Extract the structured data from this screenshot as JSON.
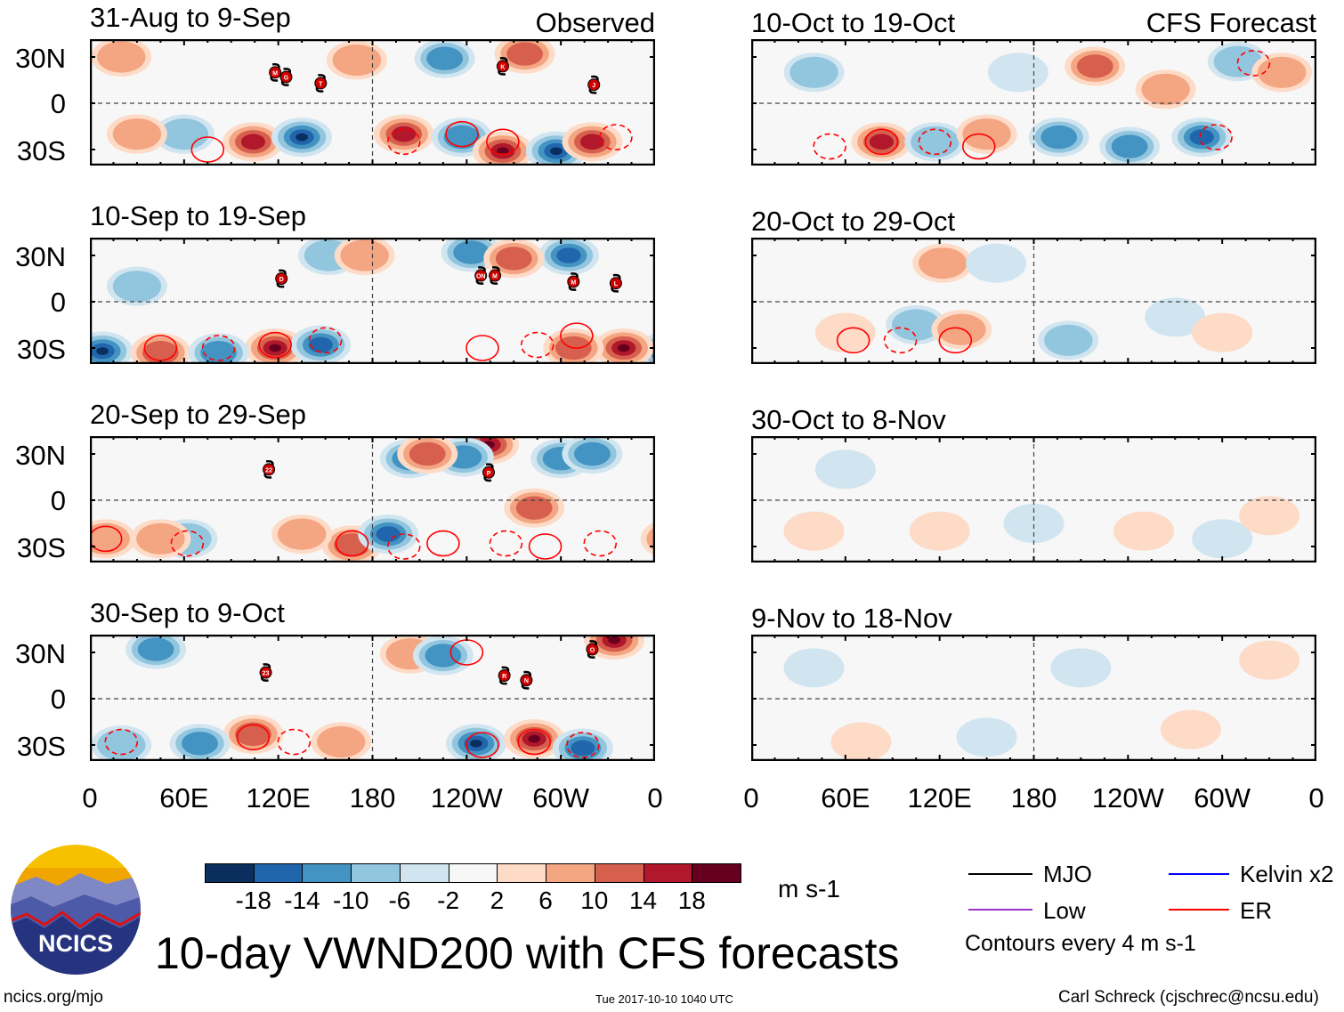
{
  "header": {
    "observed_label": "Observed",
    "forecast_label": "CFS Forecast"
  },
  "axes": {
    "y_ticks": [
      "30N",
      "0",
      "30S"
    ],
    "x_ticks": [
      "0",
      "60E",
      "120E",
      "180",
      "120W",
      "60W",
      "0"
    ]
  },
  "colorbar": {
    "colors": [
      "#0a2f5e",
      "#2166ac",
      "#4393c3",
      "#92c5de",
      "#d1e5f0",
      "#f7f7f7",
      "#fddbc7",
      "#f4a582",
      "#d6604d",
      "#b2182b",
      "#67001f"
    ],
    "labels": [
      "-18",
      "-14",
      "-10",
      "-6",
      "-2",
      "2",
      "6",
      "10",
      "14",
      "18"
    ],
    "units": "m s-1"
  },
  "legend": {
    "items": [
      {
        "label": "MJO",
        "color": "#000000"
      },
      {
        "label": "Low",
        "color": "#9933cc"
      },
      {
        "label": "Kelvin x2",
        "color": "#0000ff"
      },
      {
        "label": "ER",
        "color": "#ff0000"
      }
    ],
    "contour_note": "Contours every 4 m s-1"
  },
  "title": "10-day VWND200 with CFS forecasts",
  "logo_text": "NCICS",
  "footer": {
    "left": "ncics.org/mjo",
    "center": "Tue 2017-10-10 1040 UTC",
    "right": "Carl Schreck (cjschrec@ncsu.edu)"
  },
  "chart_data": {
    "type": "heatmap",
    "variable": "200-hPa meridional wind anomaly (m s-1)",
    "lon_range": [
      0,
      360
    ],
    "panels": [
      {
        "title": "31-Aug to 9-Sep",
        "kind": "observed",
        "anomalies": [
          [
            104,
            -25,
            14
          ],
          [
            135,
            -22,
            -18
          ],
          [
            200,
            -20,
            14
          ],
          [
            237,
            -22,
            -10
          ],
          [
            263,
            -31,
            18
          ],
          [
            297,
            -31,
            -18
          ],
          [
            320,
            -25,
            14
          ],
          [
            226,
            29,
            -10
          ],
          [
            277,
            32,
            10
          ],
          [
            20,
            30,
            6
          ],
          [
            60,
            -20,
            -6
          ],
          [
            170,
            28,
            6
          ],
          [
            30,
            -20,
            6
          ]
        ],
        "er_contours": [
          [
            237,
            -20,
            1
          ],
          [
            263,
            -25,
            1
          ],
          [
            335,
            -22,
            -1
          ],
          [
            75,
            -30,
            1
          ],
          [
            200,
            -25,
            -1
          ]
        ],
        "storms": [
          {
            "label": "M",
            "lon": 118,
            "lat": 20
          },
          {
            "label": "G",
            "lon": 125,
            "lat": 17
          },
          {
            "label": "T",
            "lon": 147,
            "lat": 13
          },
          {
            "label": "K",
            "lon": 263,
            "lat": 24
          },
          {
            "label": "J",
            "lon": 321,
            "lat": 12
          }
        ]
      },
      {
        "title": "10-Sep to 19-Sep",
        "kind": "observed",
        "anomalies": [
          [
            118,
            -30,
            18
          ],
          [
            147,
            -28,
            -14
          ],
          [
            8,
            -32,
            -18
          ],
          [
            45,
            -33,
            10
          ],
          [
            82,
            -33,
            -10
          ],
          [
            340,
            -30,
            18
          ],
          [
            305,
            30,
            -14
          ],
          [
            152,
            30,
            -6
          ],
          [
            175,
            30,
            6
          ],
          [
            243,
            32,
            -10
          ],
          [
            308,
            -30,
            10
          ],
          [
            30,
            10,
            -6
          ],
          [
            270,
            28,
            10
          ]
        ],
        "er_contours": [
          [
            118,
            -28,
            1
          ],
          [
            82,
            -30,
            -1
          ],
          [
            150,
            -25,
            -1
          ],
          [
            45,
            -30,
            1
          ],
          [
            250,
            -30,
            1
          ],
          [
            285,
            -28,
            -1
          ],
          [
            310,
            -22,
            1
          ]
        ],
        "storms": [
          {
            "label": "D",
            "lon": 122,
            "lat": 15
          },
          {
            "label": "ON",
            "lon": 249,
            "lat": 17
          },
          {
            "label": "M",
            "lon": 258,
            "lat": 17
          },
          {
            "label": "M",
            "lon": 308,
            "lat": 13
          },
          {
            "label": "L",
            "lon": 335,
            "lat": 12
          }
        ]
      },
      {
        "title": "20-Sep to 29-Sep",
        "kind": "observed",
        "anomalies": [
          [
            254,
            36,
            18
          ],
          [
            204,
            27,
            -10
          ],
          [
            238,
            28,
            -10
          ],
          [
            300,
            27,
            -10
          ],
          [
            167,
            -29,
            10
          ],
          [
            190,
            -22,
            -14
          ],
          [
            135,
            -22,
            6
          ],
          [
            62,
            -25,
            -6
          ],
          [
            45,
            -25,
            6
          ],
          [
            283,
            -5,
            10
          ],
          [
            320,
            30,
            -10
          ],
          [
            215,
            30,
            10
          ],
          [
            10,
            -25,
            6
          ]
        ],
        "er_contours": [
          [
            10,
            -25,
            1
          ],
          [
            62,
            -28,
            -1
          ],
          [
            167,
            -28,
            1
          ],
          [
            200,
            -30,
            -1
          ],
          [
            225,
            -28,
            1
          ],
          [
            265,
            -28,
            -1
          ],
          [
            290,
            -30,
            1
          ],
          [
            325,
            -28,
            -1
          ]
        ],
        "storms": [
          {
            "label": "22",
            "lon": 114,
            "lat": 20
          },
          {
            "label": "P",
            "lon": 254,
            "lat": 18
          }
        ]
      },
      {
        "title": "30-Sep to 9-Oct",
        "kind": "observed",
        "anomalies": [
          [
            104,
            -23,
            10
          ],
          [
            70,
            -29,
            -10
          ],
          [
            246,
            -29,
            -18
          ],
          [
            283,
            -26,
            18
          ],
          [
            314,
            -32,
            -14
          ],
          [
            334,
            38,
            18
          ],
          [
            42,
            32,
            -10
          ],
          [
            204,
            29,
            6
          ],
          [
            160,
            -28,
            6
          ],
          [
            225,
            28,
            -10
          ],
          [
            20,
            -30,
            -6
          ]
        ],
        "er_contours": [
          [
            104,
            -25,
            1
          ],
          [
            130,
            -28,
            -1
          ],
          [
            250,
            -30,
            1
          ],
          [
            283,
            -28,
            1
          ],
          [
            314,
            -30,
            -1
          ],
          [
            20,
            -28,
            -1
          ],
          [
            240,
            30,
            1
          ]
        ],
        "storms": [
          {
            "label": "23",
            "lon": 112,
            "lat": 17
          },
          {
            "label": "R",
            "lon": 264,
            "lat": 15
          },
          {
            "label": "N",
            "lon": 278,
            "lat": 12
          },
          {
            "label": "O",
            "lon": 320,
            "lat": 32
          }
        ]
      },
      {
        "title": "10-Oct to 19-Oct",
        "kind": "forecast",
        "anomalies": [
          [
            83,
            -25,
            14
          ],
          [
            117,
            -25,
            -6
          ],
          [
            196,
            -22,
            -10
          ],
          [
            241,
            -28,
            -10
          ],
          [
            287,
            -22,
            -14
          ],
          [
            219,
            24,
            10
          ],
          [
            264,
            9,
            6
          ],
          [
            310,
            27,
            -6
          ],
          [
            338,
            20,
            6
          ],
          [
            150,
            -20,
            6
          ],
          [
            40,
            20,
            -6
          ],
          [
            170,
            20,
            -2
          ]
        ],
        "er_contours": [
          [
            83,
            -25,
            1
          ],
          [
            117,
            -25,
            -1
          ],
          [
            145,
            -28,
            1
          ],
          [
            296,
            -22,
            -1
          ],
          [
            50,
            -28,
            -1
          ],
          [
            320,
            26,
            -1
          ]
        ],
        "storms": []
      },
      {
        "title": "20-Oct to 29-Oct",
        "kind": "forecast",
        "anomalies": [
          [
            105,
            -15,
            -6
          ],
          [
            134,
            -18,
            6
          ],
          [
            202,
            -25,
            -6
          ],
          [
            122,
            25,
            6
          ],
          [
            156,
            25,
            -2
          ],
          [
            270,
            -10,
            -2
          ],
          [
            300,
            -20,
            2
          ],
          [
            60,
            -20,
            2
          ]
        ],
        "er_contours": [
          [
            65,
            -25,
            1
          ],
          [
            95,
            -25,
            -1
          ],
          [
            130,
            -25,
            1
          ]
        ],
        "storms": []
      },
      {
        "title": "30-Oct to 8-Nov",
        "kind": "forecast",
        "anomalies": [
          [
            60,
            20,
            -2
          ],
          [
            120,
            -20,
            2
          ],
          [
            180,
            -15,
            -2
          ],
          [
            250,
            -20,
            2
          ],
          [
            300,
            -25,
            -2
          ],
          [
            330,
            -10,
            2
          ],
          [
            40,
            -20,
            2
          ]
        ],
        "er_contours": [],
        "storms": []
      },
      {
        "title": "9-Nov to 18-Nov",
        "kind": "forecast",
        "anomalies": [
          [
            70,
            -28,
            2
          ],
          [
            150,
            -25,
            -2
          ],
          [
            210,
            20,
            -2
          ],
          [
            280,
            -20,
            2
          ],
          [
            330,
            25,
            2
          ],
          [
            40,
            20,
            -2
          ]
        ],
        "er_contours": [],
        "storms": []
      }
    ]
  }
}
